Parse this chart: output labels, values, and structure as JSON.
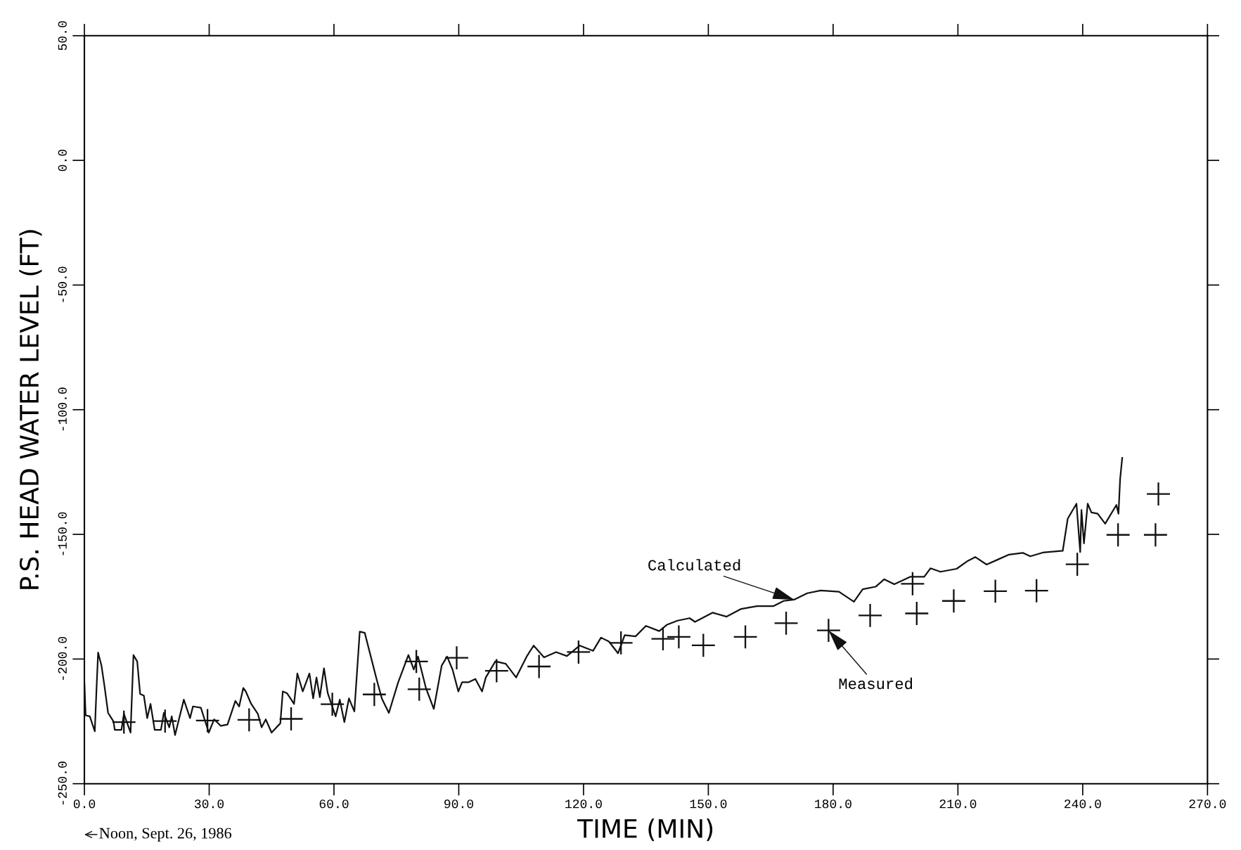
{
  "chart_data": {
    "type": "line",
    "xlabel": "TIME (MIN)",
    "ylabel": "P.S. HEAD WATER LEVEL (FT)",
    "xlim": [
      0,
      270
    ],
    "xticks": [
      {
        "value": 0,
        "label": "0.0"
      },
      {
        "value": 30,
        "label": "30.0"
      },
      {
        "value": 60,
        "label": "60.0"
      },
      {
        "value": 90,
        "label": "90.0"
      },
      {
        "value": 120,
        "label": "120.0"
      },
      {
        "value": 150,
        "label": "150.0"
      },
      {
        "value": 180,
        "label": "180.0"
      },
      {
        "value": 210,
        "label": "210.0"
      },
      {
        "value": 240,
        "label": "240.0"
      },
      {
        "value": 270,
        "label": "270.0"
      }
    ],
    "ylim": [
      -250,
      50
    ],
    "yticks": [
      {
        "value": -250,
        "label": "-250.0"
      },
      {
        "value": -200,
        "label": "-200.0"
      },
      {
        "value": -150,
        "label": "-150.0"
      },
      {
        "value": -100,
        "label": "-100.0"
      },
      {
        "value": -50,
        "label": "-50.0"
      },
      {
        "value": 0,
        "label": "0.0"
      },
      {
        "value": 50,
        "label": "50.0"
      }
    ],
    "grid": false,
    "legend": false,
    "series": [
      {
        "color": "#111111",
        "marker": "none",
        "line_style": "solid",
        "x": [
          0,
          0.3,
          1.3,
          2.5,
          2.9,
          3.3,
          4.1,
          4.8,
          5.7,
          7,
          7.3,
          8.9,
          9.5,
          11.1,
          11.8,
          12.7,
          13.4,
          14.3,
          15.1,
          15.9,
          16.9,
          18.4,
          19.1,
          20.4,
          21,
          21.8,
          23.9,
          25.4,
          26.1,
          28,
          29.9,
          31.2,
          32.8,
          34.4,
          36.3,
          37.2,
          38.2,
          38.8,
          40.1,
          41.7,
          42.6,
          43.6,
          45,
          47.1,
          47.7,
          48.7,
          50.4,
          51.2,
          52.5,
          54.1,
          55,
          55.8,
          56.6,
          57.6,
          58.5,
          60.4,
          61.4,
          62.5,
          63.6,
          64.9,
          66.2,
          67.4,
          70.3,
          71.5,
          73.2,
          75.4,
          77.9,
          79.2,
          80.2,
          82.1,
          84,
          85.9,
          87.2,
          88.5,
          89.9,
          90.8,
          92.4,
          94,
          95.6,
          96.5,
          98.8,
          101.3,
          103.8,
          106.4,
          108,
          110.5,
          113.4,
          116,
          119.1,
          122.3,
          124.2,
          126.1,
          128.3,
          129.9,
          132.5,
          135,
          138.2,
          140.1,
          142.6,
          145.5,
          146.8,
          151,
          154.4,
          157.9,
          161.7,
          165.6,
          168.1,
          170.6,
          173.8,
          177,
          181.4,
          185,
          187.1,
          190.2,
          192.3,
          194.7,
          198.6,
          201.9,
          203.4,
          205.8,
          209.7,
          212.4,
          214.2,
          216.9,
          219.6,
          222.3,
          225.6,
          227.4,
          230.4,
          235.2,
          236.4,
          238.5,
          239.4,
          239.7,
          240.3,
          241.2,
          242.1,
          243.6,
          245.4,
          248.1,
          248.6,
          249,
          249.5
        ],
        "values": [
          -209.5,
          -222.6,
          -223,
          -229,
          -212.6,
          -197.4,
          -202.6,
          -210.5,
          -221.6,
          -225,
          -228.4,
          -228.4,
          -222,
          -229.5,
          -198.4,
          -201,
          -214,
          -214.7,
          -223.7,
          -218,
          -228.4,
          -228.4,
          -221.6,
          -227.4,
          -223,
          -230.5,
          -216.3,
          -223.7,
          -219,
          -219.5,
          -229.5,
          -224.2,
          -226.8,
          -226.3,
          -216.8,
          -219,
          -211.6,
          -213,
          -218,
          -222,
          -227.4,
          -224.2,
          -229.5,
          -225.8,
          -213,
          -213.7,
          -218,
          -205.8,
          -213,
          -205.8,
          -215.8,
          -207.4,
          -215.3,
          -203.7,
          -213.7,
          -223,
          -216.3,
          -225.3,
          -215.8,
          -221,
          -189,
          -189.5,
          -208.4,
          -215.8,
          -221.6,
          -209.5,
          -198.4,
          -204.2,
          -199,
          -211.6,
          -220,
          -202.6,
          -199,
          -204.2,
          -213,
          -209.3,
          -209.3,
          -208,
          -213,
          -207.4,
          -200.9,
          -201.9,
          -207.4,
          -198.8,
          -194.6,
          -199.3,
          -197.2,
          -198.8,
          -194.6,
          -196.7,
          -191.4,
          -193,
          -197.7,
          -190.4,
          -190.9,
          -186.7,
          -188.8,
          -186.2,
          -184.6,
          -183.6,
          -185.1,
          -181.4,
          -183,
          -179.9,
          -178.8,
          -178.8,
          -176.7,
          -176.2,
          -173.6,
          -172.5,
          -173,
          -177,
          -172,
          -171,
          -168,
          -170,
          -167,
          -167,
          -163.6,
          -165,
          -163.8,
          -160.6,
          -159.1,
          -162.1,
          -160.1,
          -158.1,
          -157.4,
          -158.8,
          -157.3,
          -156.6,
          -143.7,
          -137.7,
          -157.1,
          -140.2,
          -153.6,
          -137.7,
          -141.2,
          -141.7,
          -145.7,
          -138.2,
          -141.7,
          -127.8,
          -119.3
        ]
      },
      {
        "type": "scatter",
        "color": "#111111",
        "marker": "cross",
        "x": [
          9.5,
          19.4,
          29.6,
          39.6,
          49.7,
          59.6,
          69.7,
          79.8,
          80.5,
          89.5,
          99.1,
          109.3,
          118.8,
          129,
          139.1,
          142.9,
          148.8,
          158.9,
          168.7,
          178.9,
          188.9,
          199.1,
          200.1,
          209,
          219,
          228.9,
          238.7,
          248.5,
          257.5,
          258.2
        ],
        "values": [
          -225.3,
          -224.9,
          -224.7,
          -224.4,
          -224,
          -218.1,
          -214.2,
          -201,
          -212.1,
          -199.5,
          -204.7,
          -203,
          -197.2,
          -193.5,
          -191.9,
          -191.1,
          -194.5,
          -191.1,
          -185.6,
          -188.5,
          -182.5,
          -169.8,
          -181.7,
          -176.7,
          -172.8,
          -172.6,
          -162,
          -150.2,
          -150.2,
          -133.8
        ]
      }
    ],
    "annotations": [
      {
        "text": "Calculated",
        "x": 170.6,
        "y": -176.2
      },
      {
        "text": "Measured",
        "x": 178.9,
        "y": -188.5
      },
      "Noon, Sept. 26, 1986"
    ]
  }
}
